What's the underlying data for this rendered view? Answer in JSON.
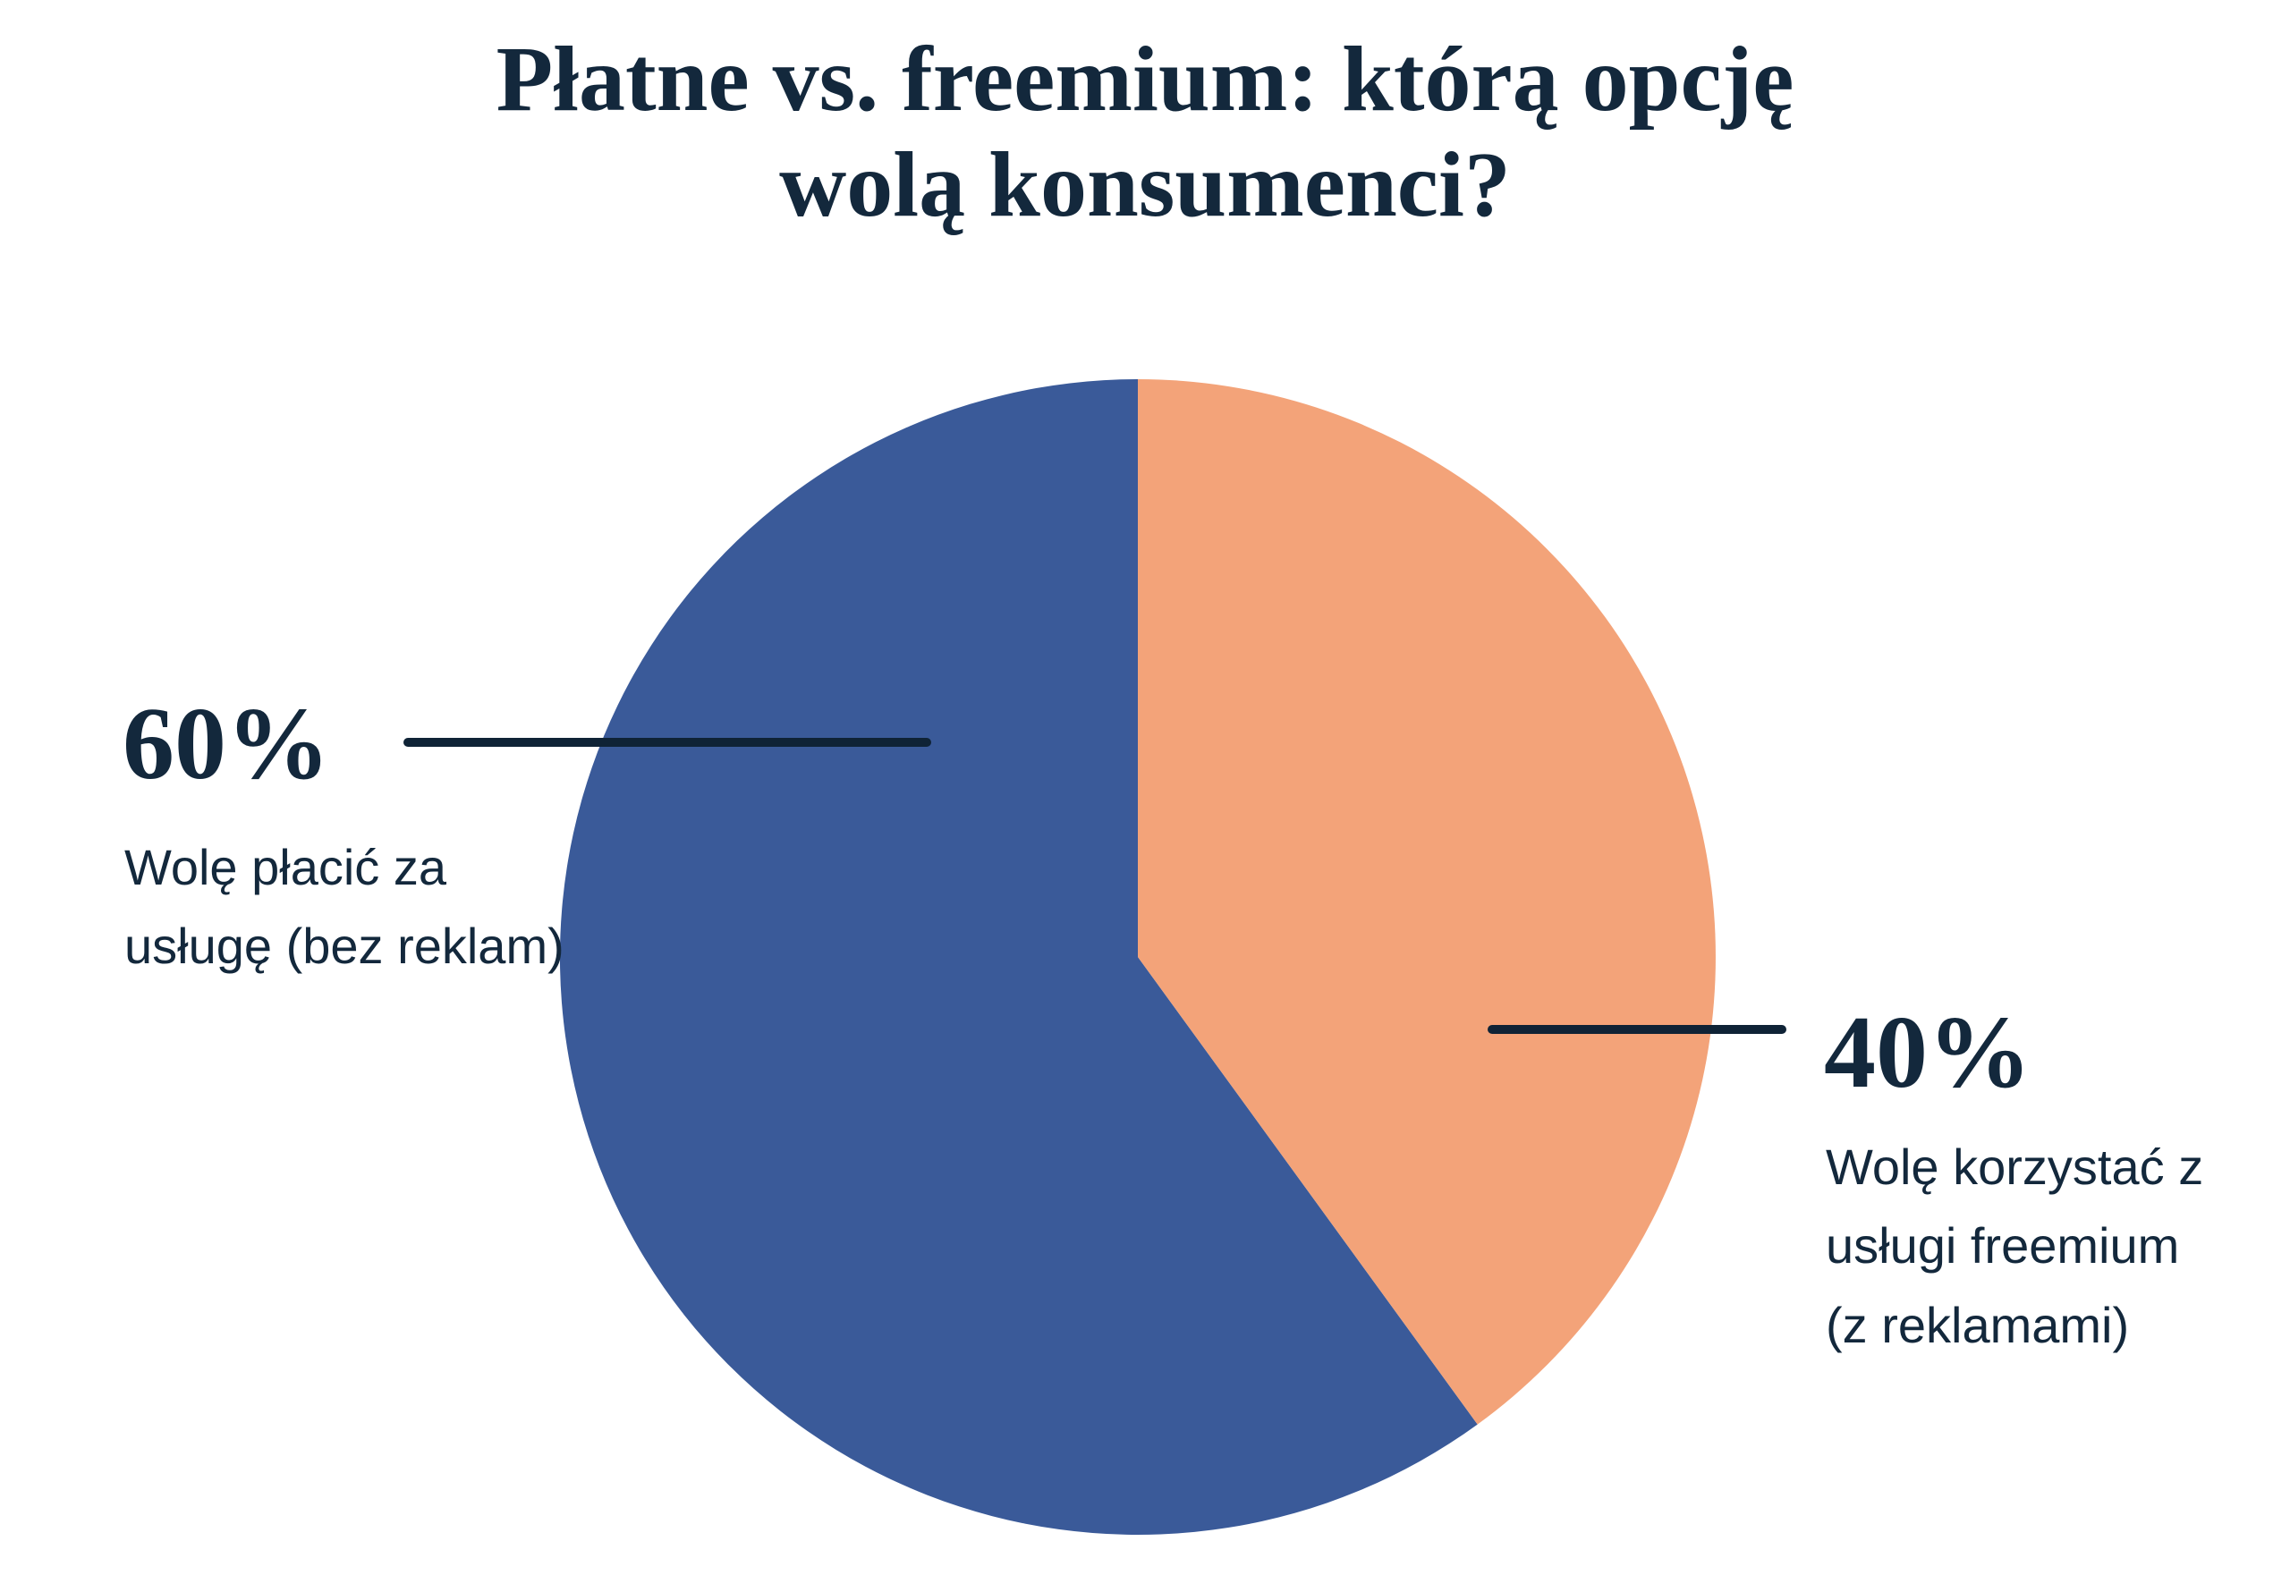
{
  "title": {
    "lines": [
      "Płatne vs. freemium: którą opcję",
      "wolą konsumenci?"
    ]
  },
  "colors": {
    "background": "#FFFFFF",
    "navy_text": "#13283C",
    "leader_line": "#0F2336",
    "blue_slice": "#3A5A99",
    "orange_slice": "#F3A379"
  },
  "chart_data": {
    "type": "pie",
    "title": "Płatne vs. freemium: którą opcję wolą konsumenci?",
    "legend": "none",
    "data_labels": "outside-with-leader-lines",
    "start_angle_deg": 144,
    "clockwise": true,
    "slices": [
      {
        "label": "Wolę płacić za usługę (bez reklam)",
        "label_lines": [
          "Wolę płacić za",
          "usługę (bez reklam)"
        ],
        "value_pct": 60,
        "value_text": "60%",
        "color": "#3A5A99"
      },
      {
        "label": "Wolę korzystać z usługi freemium (z reklamami)",
        "label_lines": [
          "Wolę korzystać z",
          "usługi freemium",
          "(z reklamami)"
        ],
        "value_pct": 40,
        "value_text": "40%",
        "color": "#F3A379"
      }
    ]
  }
}
